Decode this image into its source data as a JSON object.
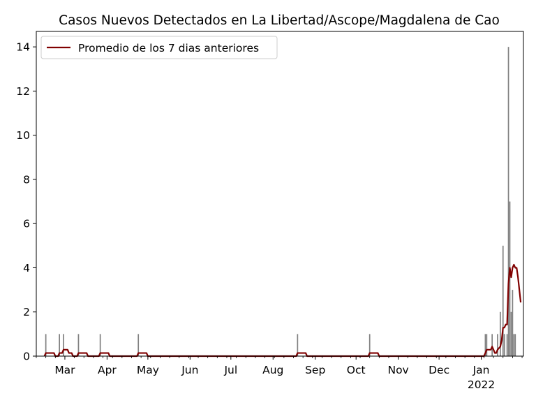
{
  "chart_data": {
    "type": "bar",
    "title": "Casos Nuevos Detectados en La Libertad/Ascope/Magdalena de Cao",
    "xlabel": "",
    "ylabel": "",
    "x_range": [
      "2021-02-08",
      "2022-02-01"
    ],
    "ylim": [
      0,
      14.7
    ],
    "yticks": [
      0,
      2,
      4,
      6,
      8,
      10,
      12,
      14
    ],
    "xticks": [
      {
        "date": "2021-03-01",
        "label": "Mar",
        "sublabel": ""
      },
      {
        "date": "2021-04-01",
        "label": "Apr",
        "sublabel": ""
      },
      {
        "date": "2021-05-01",
        "label": "May",
        "sublabel": ""
      },
      {
        "date": "2021-06-01",
        "label": "Jun",
        "sublabel": ""
      },
      {
        "date": "2021-07-01",
        "label": "Jul",
        "sublabel": ""
      },
      {
        "date": "2021-08-01",
        "label": "Aug",
        "sublabel": ""
      },
      {
        "date": "2021-09-01",
        "label": "Sep",
        "sublabel": ""
      },
      {
        "date": "2021-10-01",
        "label": "Oct",
        "sublabel": ""
      },
      {
        "date": "2021-11-01",
        "label": "Nov",
        "sublabel": ""
      },
      {
        "date": "2021-12-01",
        "label": "Dec",
        "sublabel": ""
      },
      {
        "date": "2022-01-01",
        "label": "Jan",
        "sublabel": "2022"
      }
    ],
    "grid": false,
    "legend_position": "top-left",
    "bar_color": "#808080",
    "line_color": "#800000",
    "series": [
      {
        "name": "",
        "kind": "bar",
        "points": [
          {
            "x": "2021-02-15",
            "y": 1
          },
          {
            "x": "2021-02-25",
            "y": 1
          },
          {
            "x": "2021-02-28",
            "y": 1
          },
          {
            "x": "2021-03-11",
            "y": 1
          },
          {
            "x": "2021-03-27",
            "y": 1
          },
          {
            "x": "2021-04-24",
            "y": 1
          },
          {
            "x": "2021-08-19",
            "y": 1
          },
          {
            "x": "2021-10-11",
            "y": 1
          },
          {
            "x": "2022-01-04",
            "y": 1
          },
          {
            "x": "2022-01-05",
            "y": 1
          },
          {
            "x": "2022-01-09",
            "y": 1
          },
          {
            "x": "2022-01-13",
            "y": 1
          },
          {
            "x": "2022-01-15",
            "y": 2
          },
          {
            "x": "2022-01-17",
            "y": 5
          },
          {
            "x": "2022-01-18",
            "y": 1
          },
          {
            "x": "2022-01-20",
            "y": 1
          },
          {
            "x": "2022-01-21",
            "y": 14
          },
          {
            "x": "2022-01-22",
            "y": 7
          },
          {
            "x": "2022-01-23",
            "y": 2
          },
          {
            "x": "2022-01-24",
            "y": 3
          },
          {
            "x": "2022-01-25",
            "y": 1
          },
          {
            "x": "2022-01-26",
            "y": 1
          }
        ]
      },
      {
        "name": "Promedio de los 7 dias anteriores",
        "kind": "line",
        "points": [
          {
            "x": "2021-02-14",
            "y": 0
          },
          {
            "x": "2021-02-15",
            "y": 0.14
          },
          {
            "x": "2021-02-21",
            "y": 0.14
          },
          {
            "x": "2021-02-22",
            "y": 0
          },
          {
            "x": "2021-02-24",
            "y": 0
          },
          {
            "x": "2021-02-25",
            "y": 0.14
          },
          {
            "x": "2021-02-27",
            "y": 0.14
          },
          {
            "x": "2021-02-28",
            "y": 0.29
          },
          {
            "x": "2021-03-03",
            "y": 0.29
          },
          {
            "x": "2021-03-04",
            "y": 0.14
          },
          {
            "x": "2021-03-06",
            "y": 0.14
          },
          {
            "x": "2021-03-07",
            "y": 0
          },
          {
            "x": "2021-03-10",
            "y": 0
          },
          {
            "x": "2021-03-11",
            "y": 0.14
          },
          {
            "x": "2021-03-17",
            "y": 0.14
          },
          {
            "x": "2021-03-18",
            "y": 0
          },
          {
            "x": "2021-03-26",
            "y": 0
          },
          {
            "x": "2021-03-27",
            "y": 0.14
          },
          {
            "x": "2021-04-02",
            "y": 0.14
          },
          {
            "x": "2021-04-03",
            "y": 0
          },
          {
            "x": "2021-04-23",
            "y": 0
          },
          {
            "x": "2021-04-24",
            "y": 0.14
          },
          {
            "x": "2021-04-30",
            "y": 0.14
          },
          {
            "x": "2021-05-01",
            "y": 0
          },
          {
            "x": "2021-08-18",
            "y": 0
          },
          {
            "x": "2021-08-19",
            "y": 0.14
          },
          {
            "x": "2021-08-25",
            "y": 0.14
          },
          {
            "x": "2021-08-26",
            "y": 0
          },
          {
            "x": "2021-10-10",
            "y": 0
          },
          {
            "x": "2021-10-11",
            "y": 0.14
          },
          {
            "x": "2021-10-17",
            "y": 0.14
          },
          {
            "x": "2021-10-18",
            "y": 0
          },
          {
            "x": "2022-01-03",
            "y": 0
          },
          {
            "x": "2022-01-04",
            "y": 0.14
          },
          {
            "x": "2022-01-05",
            "y": 0.29
          },
          {
            "x": "2022-01-08",
            "y": 0.29
          },
          {
            "x": "2022-01-09",
            "y": 0.43
          },
          {
            "x": "2022-01-10",
            "y": 0.29
          },
          {
            "x": "2022-01-11",
            "y": 0.14
          },
          {
            "x": "2022-01-12",
            "y": 0.14
          },
          {
            "x": "2022-01-13",
            "y": 0.29
          },
          {
            "x": "2022-01-15",
            "y": 0.43
          },
          {
            "x": "2022-01-16",
            "y": 0.71
          },
          {
            "x": "2022-01-17",
            "y": 1.29
          },
          {
            "x": "2022-01-18",
            "y": 1.29
          },
          {
            "x": "2022-01-19",
            "y": 1.43
          },
          {
            "x": "2022-01-20",
            "y": 1.43
          },
          {
            "x": "2022-01-21",
            "y": 3.29
          },
          {
            "x": "2022-01-22",
            "y": 4.0
          },
          {
            "x": "2022-01-23",
            "y": 3.57
          },
          {
            "x": "2022-01-24",
            "y": 4.0
          },
          {
            "x": "2022-01-25",
            "y": 4.14
          },
          {
            "x": "2022-01-26",
            "y": 4.0
          },
          {
            "x": "2022-01-27",
            "y": 4.0
          },
          {
            "x": "2022-01-28",
            "y": 3.57
          },
          {
            "x": "2022-01-29",
            "y": 3.0
          },
          {
            "x": "2022-01-30",
            "y": 2.43
          }
        ]
      }
    ]
  }
}
